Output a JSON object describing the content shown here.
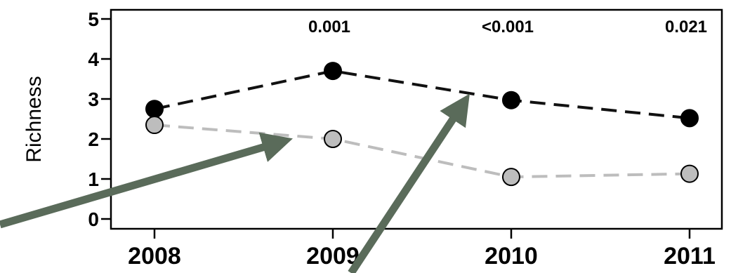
{
  "chart_data": {
    "type": "line",
    "title": "",
    "xlabel": "",
    "ylabel": "Richness",
    "categories": [
      "2008",
      "2009",
      "2010",
      "2011"
    ],
    "ylim": [
      0,
      5
    ],
    "yticks": [
      0,
      1,
      2,
      3,
      4,
      5
    ],
    "grid": false,
    "legend": "none",
    "series": [
      {
        "values": [
          2.75,
          3.7,
          2.97,
          2.52
        ],
        "color": "#000000",
        "line_color": "#111111",
        "line_style": "dashed"
      },
      {
        "values": [
          2.35,
          2.0,
          1.05,
          1.13
        ],
        "color": "#bdbdbd",
        "line_color": "#bdbdbd",
        "line_style": "dashed"
      }
    ],
    "annotations": [
      {
        "category": "2009",
        "text": "0.001"
      },
      {
        "category": "2010",
        "text": "<0.001"
      },
      {
        "category": "2011",
        "text": "0.021"
      }
    ],
    "overlay_arrows": {
      "color": "#5a6b5a",
      "count": 2
    }
  }
}
